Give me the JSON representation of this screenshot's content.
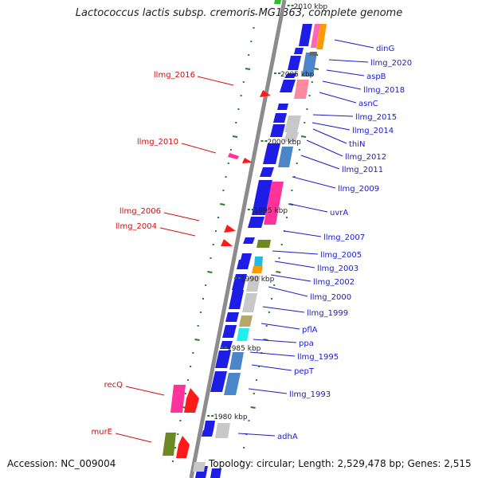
{
  "title": "Lactococcus lactis subsp. cremoris MG1363, complete genome",
  "footer": {
    "accession": "Accession: NC_009004",
    "topology": "Topology: circular; Length: 2,529,478 bp; Genes: 2,515"
  },
  "colors": {
    "backbone": "#8c8c8c",
    "tick": "#2a7a2a",
    "right_label": "#1a1acc",
    "left_label": "#cc1111",
    "kbp_label": "#222222"
  },
  "kbp_labels": [
    {
      "text": "2010 kbp",
      "pos": 0.0
    },
    {
      "text": "2005 kbp",
      "pos": 0.155
    },
    {
      "text": "2000 kbp",
      "pos": 0.305
    },
    {
      "text": "1995 kbp",
      "pos": 0.455
    },
    {
      "text": "1990 kbp",
      "pos": 0.605
    },
    {
      "text": "1985 kbp",
      "pos": 0.755
    },
    {
      "text": "1980 kbp",
      "pos": 0.905
    }
  ],
  "right_genes": [
    "dinG",
    "llmg_2020",
    "aspB",
    "llmg_2018",
    "asnC",
    "llmg_2015",
    "llmg_2014",
    "thiN",
    "llmg_2012",
    "llmg_2011",
    "llmg_2009",
    "uvrA",
    "llmg_2007",
    "llmg_2005",
    "llmg_2003",
    "llmg_2002",
    "llmg_2000",
    "llmg_1999",
    "pflA",
    "ppa",
    "llmg_1995",
    "pepT",
    "llmg_1993",
    "adhA"
  ],
  "left_genes": [
    "llmg_2016",
    "llmg_2010",
    "llmg_2006",
    "llmg_2004",
    "recQ",
    "murE"
  ]
}
